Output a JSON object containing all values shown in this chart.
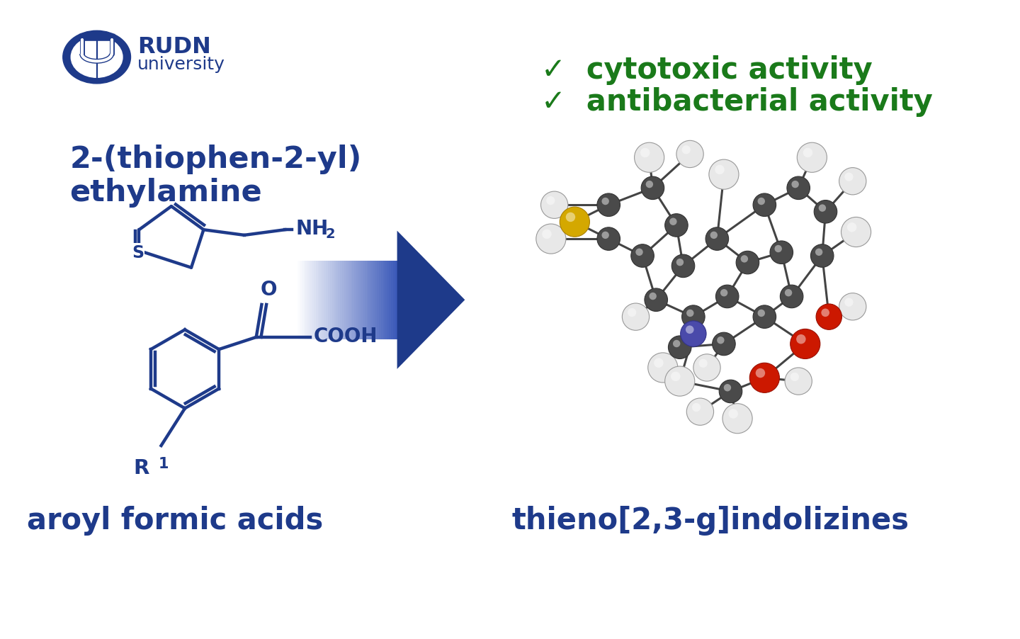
{
  "background_color": "#ffffff",
  "blue_color": "#1e3a8a",
  "green_color": "#1a7a1a",
  "check1": "✓  cytotoxic activity",
  "check2": "✓  antibacterial activity",
  "label_top": "2-(thiophen-2-yl)\nethylamine",
  "label_bottom": "aroyl formic acids",
  "label_product": "thieno[2,3-g]indolizines",
  "fig_width": 14.4,
  "fig_height": 9.03
}
